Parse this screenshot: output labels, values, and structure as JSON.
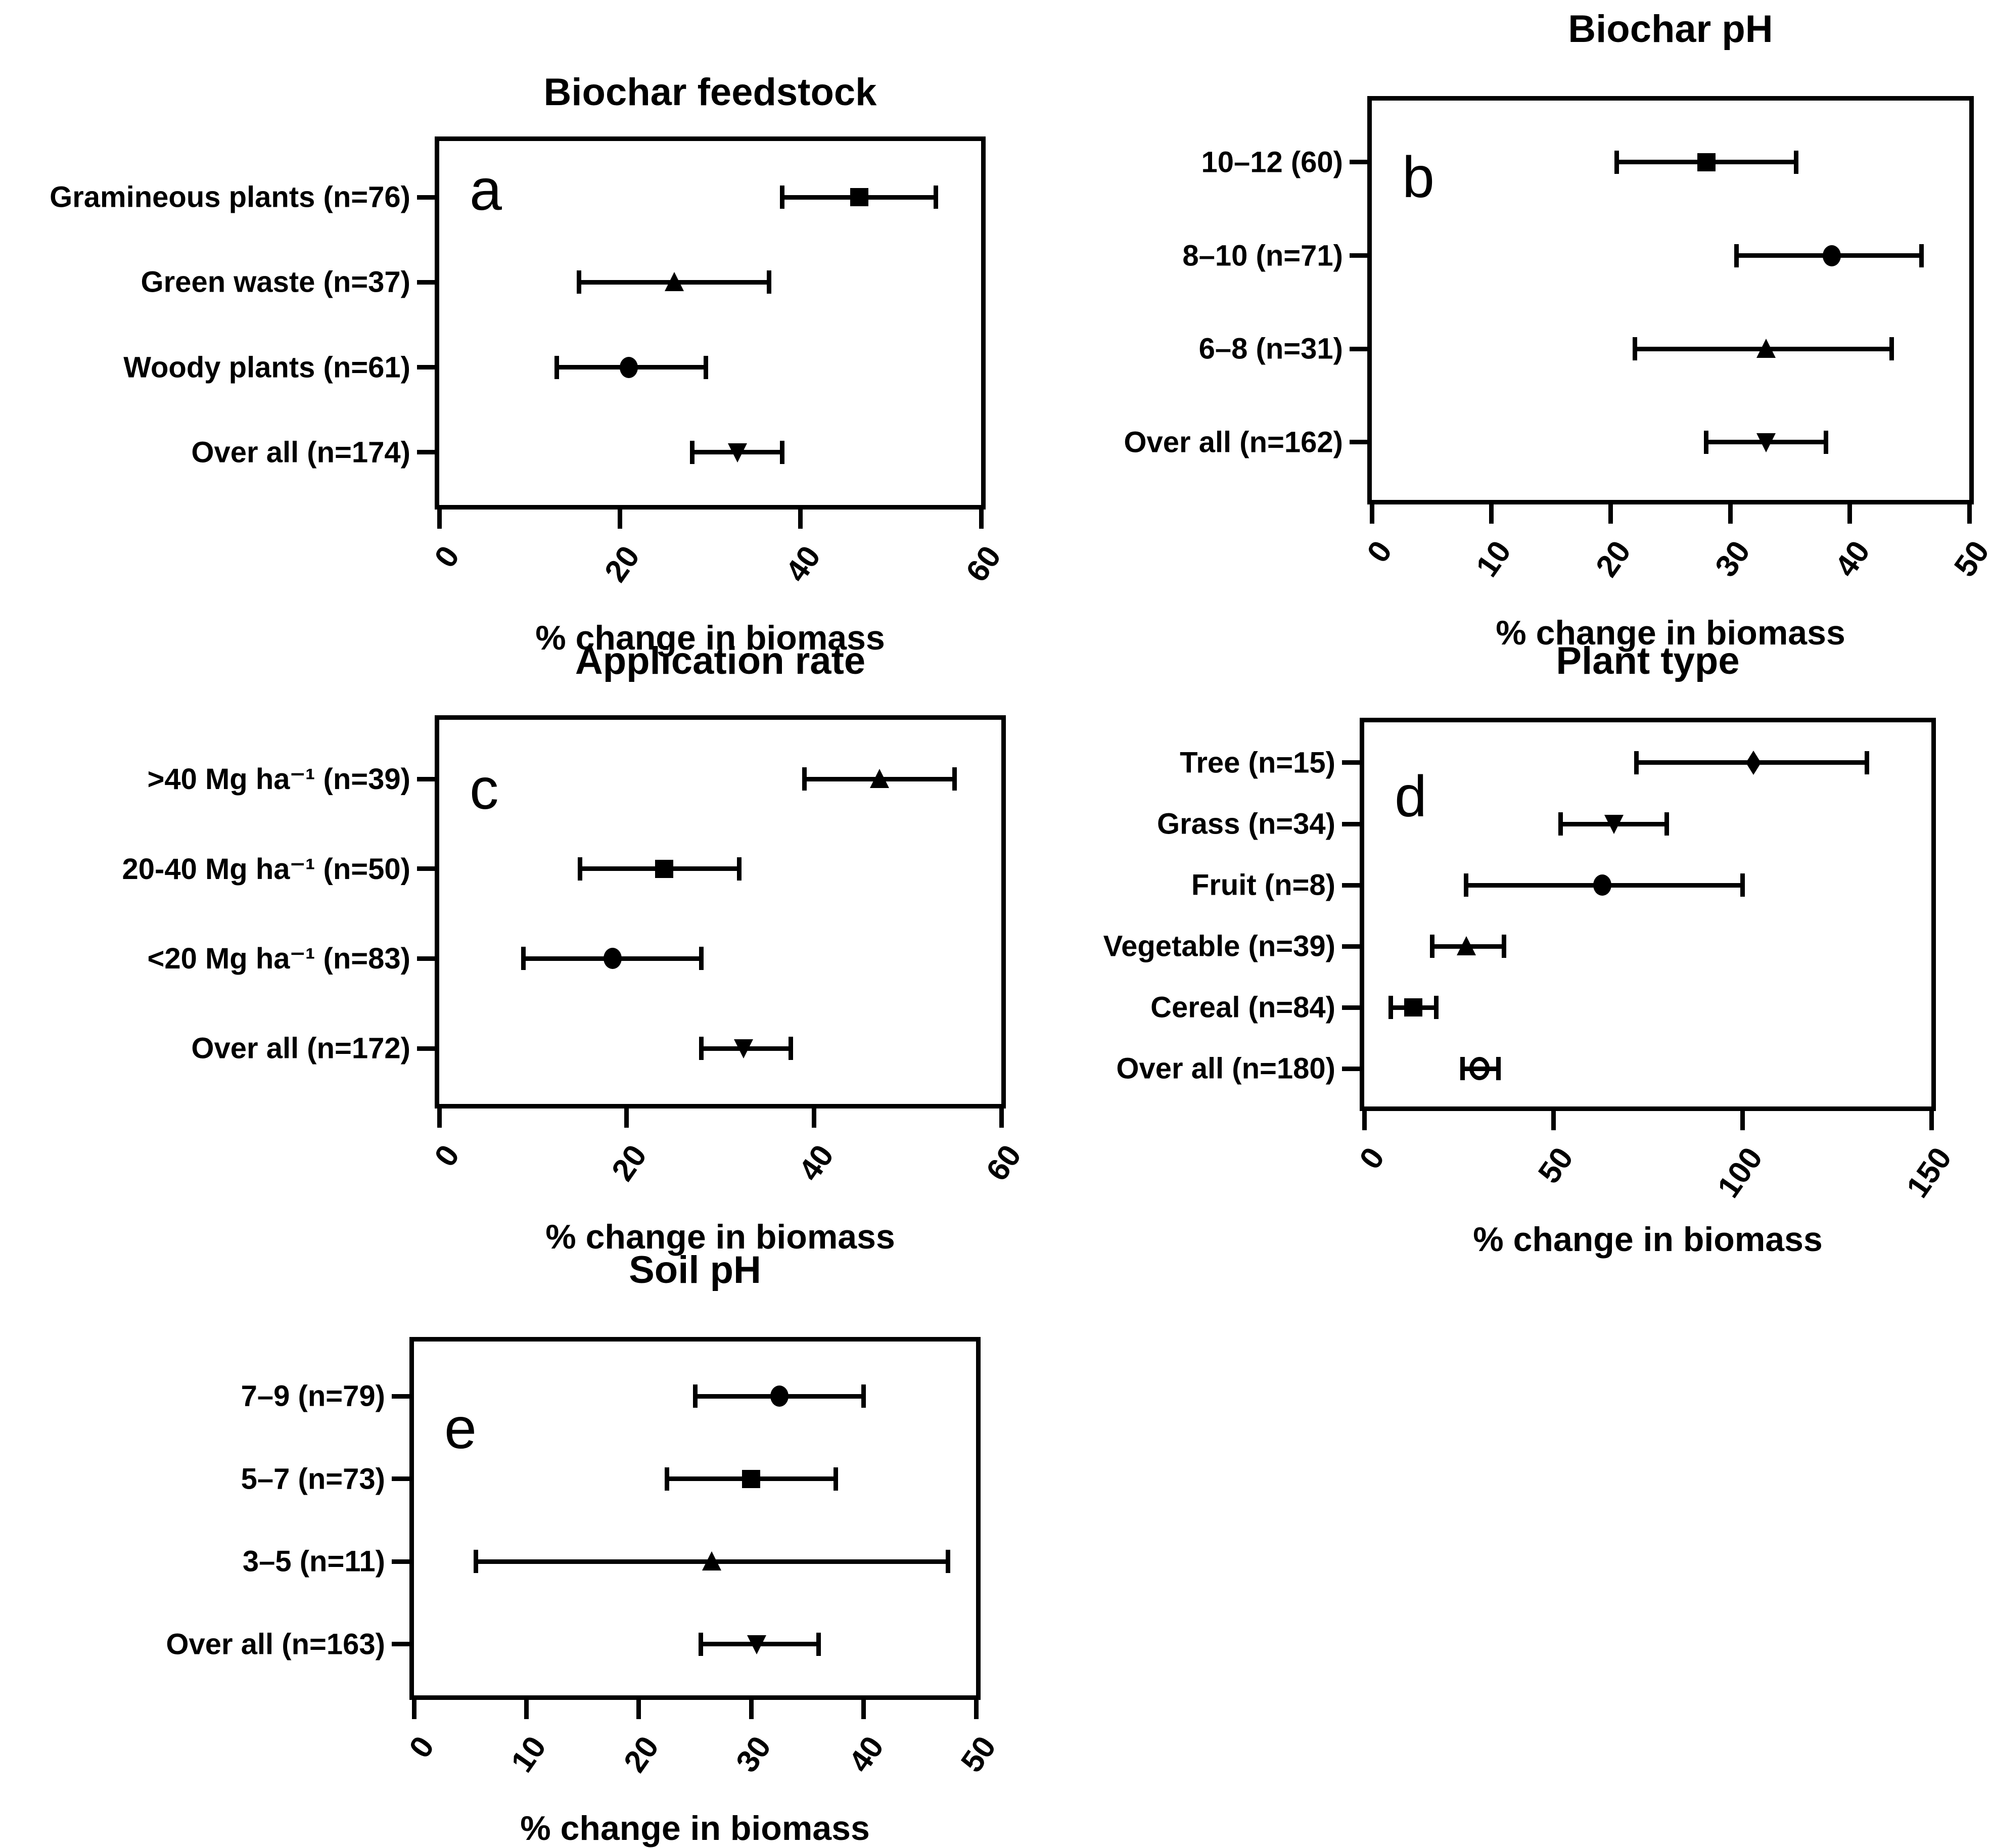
{
  "colors": {
    "marker": "#000000",
    "background": "#ffffff",
    "axis": "#000000"
  },
  "xlabel_shared": "% change in biomass",
  "chart_data": [
    {
      "type": "scatter",
      "panel_letter": "a",
      "title": "Biochar feedstock",
      "xlabel": "% change in biomass",
      "xlim": [
        0,
        60
      ],
      "xticks": [
        0,
        20,
        40,
        60
      ],
      "grid": false,
      "legend": "none",
      "orientation": "horizontal",
      "rows": [
        {
          "label": "Gramineous plants (n=76)",
          "marker": "square",
          "value": 46.5,
          "err_lo": 38,
          "err_hi": 55
        },
        {
          "label": "Green waste (n=37)",
          "marker": "triangle-up",
          "value": 26,
          "err_lo": 15.5,
          "err_hi": 36.5
        },
        {
          "label": "Woody plants (n=61)",
          "marker": "circle",
          "value": 21,
          "err_lo": 13,
          "err_hi": 29.5
        },
        {
          "label": "Over all (n=174)",
          "marker": "triangle-down",
          "value": 33,
          "err_lo": 28,
          "err_hi": 38
        }
      ]
    },
    {
      "type": "scatter",
      "panel_letter": "b",
      "title": "Biochar pH",
      "xlabel": "% change in biomass",
      "xlim": [
        0,
        50
      ],
      "xticks": [
        0,
        10,
        20,
        30,
        40,
        50
      ],
      "grid": false,
      "legend": "none",
      "orientation": "horizontal",
      "rows": [
        {
          "label": "10–12 (60)",
          "marker": "square",
          "value": 28,
          "err_lo": 20.5,
          "err_hi": 35.5
        },
        {
          "label": "8–10 (n=71)",
          "marker": "circle",
          "value": 38.5,
          "err_lo": 30.5,
          "err_hi": 46
        },
        {
          "label": "6–8 (n=31)",
          "marker": "triangle-up",
          "value": 33,
          "err_lo": 22,
          "err_hi": 43.5
        },
        {
          "label": "Over all (n=162)",
          "marker": "triangle-down",
          "value": 33,
          "err_lo": 28,
          "err_hi": 38
        }
      ]
    },
    {
      "type": "scatter",
      "panel_letter": "c",
      "title": "Application rate",
      "xlabel": "% change in biomass",
      "xlim": [
        0,
        60
      ],
      "xticks": [
        0,
        20,
        40,
        60
      ],
      "grid": false,
      "legend": "none",
      "orientation": "horizontal",
      "rows": [
        {
          "label": ">40 Mg ha⁻¹ (n=39)",
          "marker": "triangle-up",
          "value": 47,
          "err_lo": 39,
          "err_hi": 55
        },
        {
          "label": "20-40 Mg ha⁻¹ (n=50)",
          "marker": "square",
          "value": 24,
          "err_lo": 15,
          "err_hi": 32
        },
        {
          "label": "<20 Mg ha⁻¹ (n=83)",
          "marker": "circle",
          "value": 18.5,
          "err_lo": 9,
          "err_hi": 28
        },
        {
          "label": "Over all (n=172)",
          "marker": "triangle-down",
          "value": 32.5,
          "err_lo": 28,
          "err_hi": 37.5
        }
      ]
    },
    {
      "type": "scatter",
      "panel_letter": "d",
      "title": "Plant type",
      "xlabel": "% change in biomass",
      "xlim": [
        0,
        150
      ],
      "xticks": [
        0,
        50,
        100,
        150
      ],
      "grid": false,
      "legend": "none",
      "orientation": "horizontal",
      "rows": [
        {
          "label": "Tree (n=15)",
          "marker": "diamond",
          "value": 103,
          "err_lo": 72,
          "err_hi": 133
        },
        {
          "label": "Grass (n=34)",
          "marker": "triangle-down",
          "value": 66,
          "err_lo": 52,
          "err_hi": 80
        },
        {
          "label": "Fruit (n=8)",
          "marker": "circle",
          "value": 63,
          "err_lo": 27,
          "err_hi": 100
        },
        {
          "label": "Vegetable (n=39)",
          "marker": "triangle-up",
          "value": 27,
          "err_lo": 18,
          "err_hi": 37
        },
        {
          "label": "Cereal (n=84)",
          "marker": "square",
          "value": 13,
          "err_lo": 7,
          "err_hi": 19
        },
        {
          "label": "Over all (n=180)",
          "marker": "circle-open",
          "value": 30.5,
          "err_lo": 26,
          "err_hi": 35.5
        }
      ]
    },
    {
      "type": "scatter",
      "panel_letter": "e",
      "title": "Soil pH",
      "xlabel": "% change in biomass",
      "xlim": [
        0,
        50
      ],
      "xticks": [
        0,
        10,
        20,
        30,
        40,
        50
      ],
      "grid": false,
      "legend": "none",
      "orientation": "horizontal",
      "rows": [
        {
          "label": "7–9 (n=79)",
          "marker": "circle",
          "value": 32.5,
          "err_lo": 25,
          "err_hi": 40
        },
        {
          "label": "5–7 (n=73)",
          "marker": "square",
          "value": 30,
          "err_lo": 22.5,
          "err_hi": 37.5
        },
        {
          "label": "3–5 (n=11)",
          "marker": "triangle-up",
          "value": 26.5,
          "err_lo": 5.5,
          "err_hi": 47.5
        },
        {
          "label": "Over all (n=163)",
          "marker": "triangle-down",
          "value": 30.5,
          "err_lo": 25.5,
          "err_hi": 36
        }
      ]
    }
  ]
}
